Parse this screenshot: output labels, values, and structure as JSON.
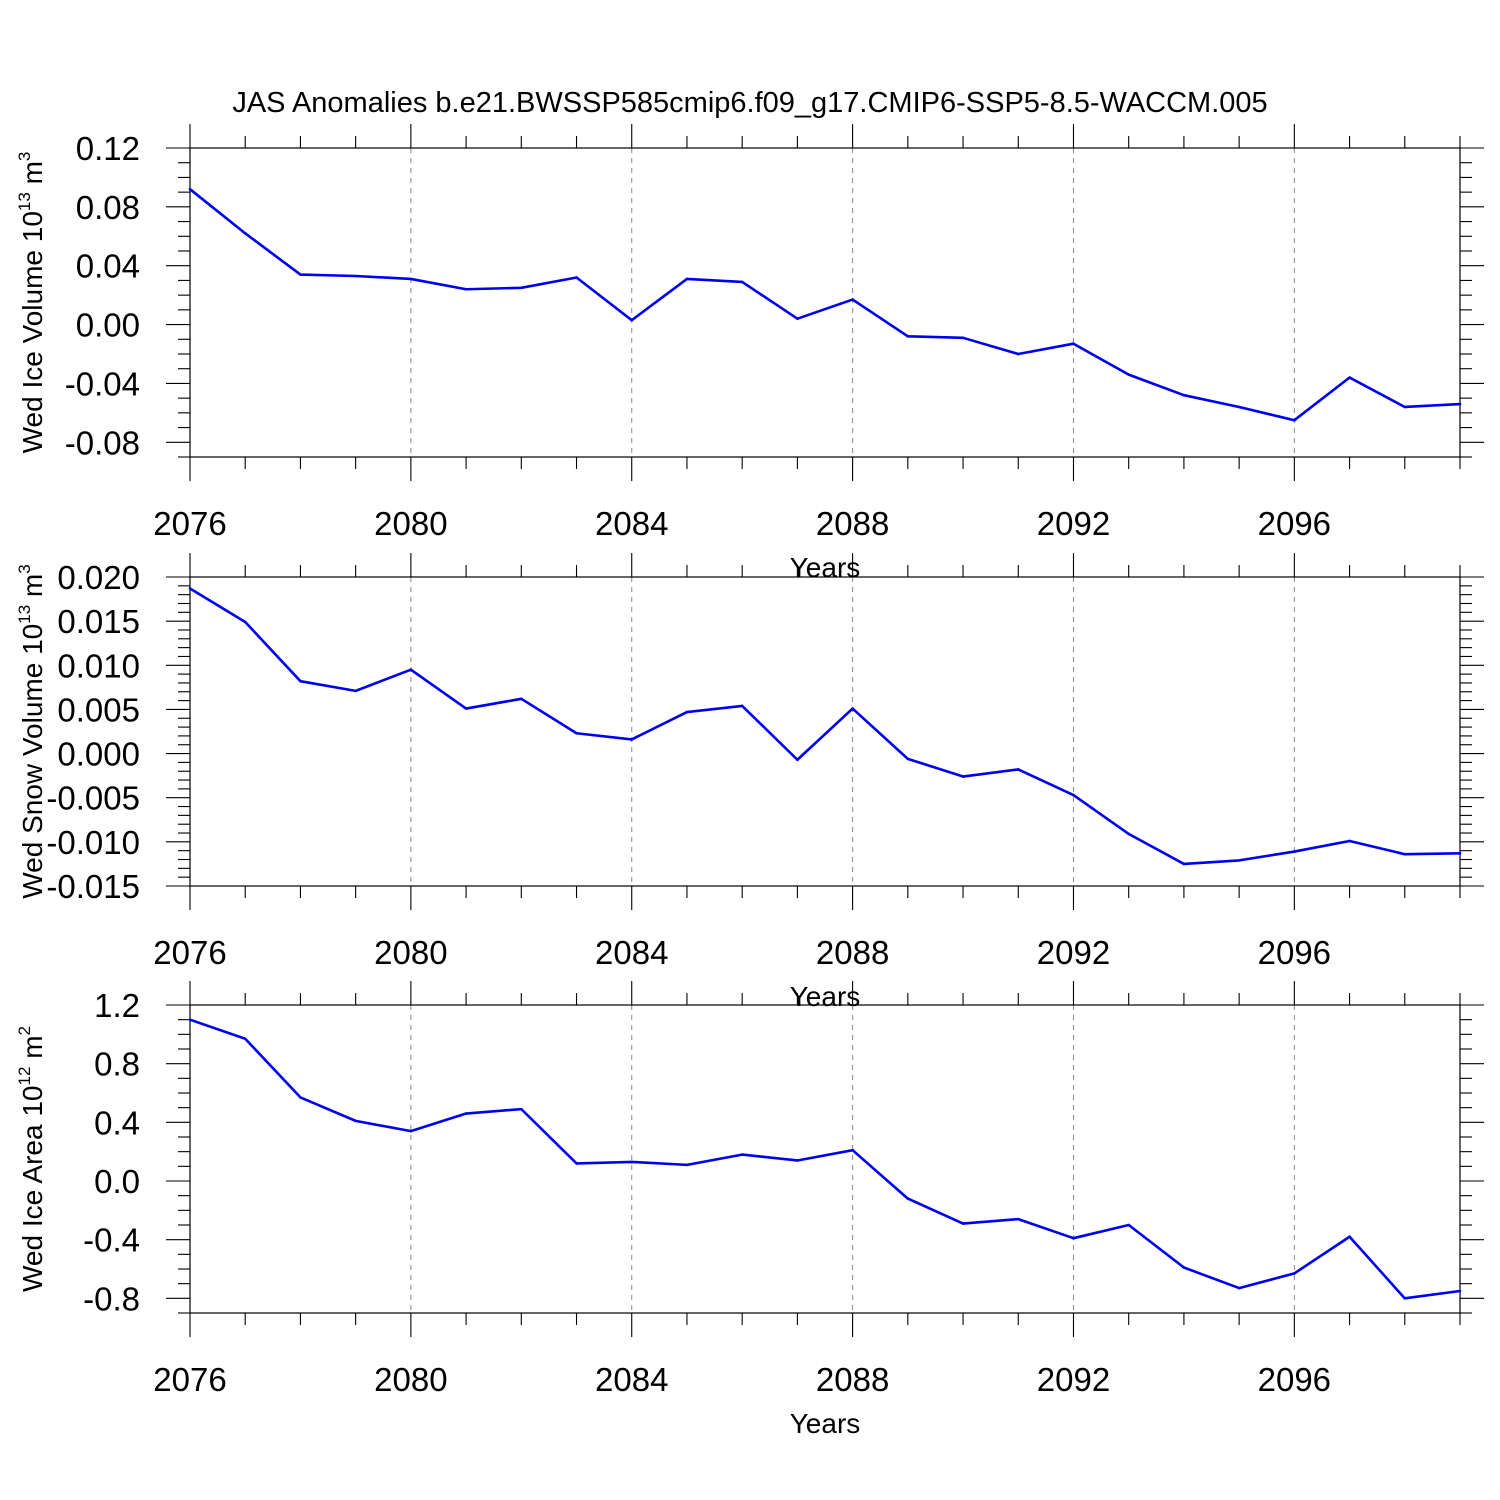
{
  "figure": {
    "title": "JAS Anomalies b.e21.BWSSP585cmip6.f09_g17.CMIP6-SSP5-8.5-WACCM.005"
  },
  "colors": {
    "line": "#0000ee",
    "axis": "#000000",
    "grid": "#888888"
  },
  "chart_data": [
    {
      "type": "line",
      "ylabel": "Wed Ice Volume 10",
      "ylabel_exponent": "13",
      "ylabel_unit": " m",
      "ylabel_unit_exponent": "3",
      "xlabel": "Years",
      "xlim": [
        2076,
        2099
      ],
      "ylim": [
        -0.09,
        0.12
      ],
      "xticks": [
        2076,
        2080,
        2084,
        2088,
        2092,
        2096
      ],
      "xtick_labels": [
        "2076",
        "2080",
        "2084",
        "2088",
        "2092",
        "2096"
      ],
      "yticks": [
        0.12,
        0.08,
        0.04,
        0.0,
        -0.04,
        -0.08
      ],
      "ytick_labels": [
        "0.12",
        "0.08",
        "0.04",
        "0.00",
        "-0.04",
        "-0.08"
      ],
      "x_minor_step": 1,
      "y_minor_step": 0.01,
      "grid": "vertical dashed at major x ticks",
      "x": [
        2076,
        2077,
        2078,
        2079,
        2080,
        2081,
        2082,
        2083,
        2084,
        2085,
        2086,
        2087,
        2088,
        2089,
        2090,
        2091,
        2092,
        2093,
        2094,
        2095,
        2096,
        2097,
        2098,
        2099
      ],
      "values": [
        0.092,
        0.062,
        0.034,
        0.033,
        0.031,
        0.024,
        0.025,
        0.032,
        0.003,
        0.031,
        0.029,
        0.004,
        0.017,
        -0.008,
        -0.009,
        -0.02,
        -0.013,
        -0.034,
        -0.048,
        -0.056,
        -0.065,
        -0.036,
        -0.056,
        -0.054
      ]
    },
    {
      "type": "line",
      "ylabel": "Wed Snow Volume 10",
      "ylabel_exponent": "13",
      "ylabel_unit": " m",
      "ylabel_unit_exponent": "3",
      "xlabel": "Years",
      "xlim": [
        2076,
        2099
      ],
      "ylim": [
        -0.015,
        0.02
      ],
      "xticks": [
        2076,
        2080,
        2084,
        2088,
        2092,
        2096
      ],
      "xtick_labels": [
        "2076",
        "2080",
        "2084",
        "2088",
        "2092",
        "2096"
      ],
      "yticks": [
        0.02,
        0.015,
        0.01,
        0.005,
        0.0,
        -0.005,
        -0.01,
        -0.015
      ],
      "ytick_labels": [
        "0.020",
        "0.015",
        "0.010",
        "0.005",
        "0.000",
        "-0.005",
        "-0.010",
        "-0.015"
      ],
      "x_minor_step": 1,
      "y_minor_step": 0.001,
      "grid": "vertical dashed at major x ticks",
      "x": [
        2076,
        2077,
        2078,
        2079,
        2080,
        2081,
        2082,
        2083,
        2084,
        2085,
        2086,
        2087,
        2088,
        2089,
        2090,
        2091,
        2092,
        2093,
        2094,
        2095,
        2096,
        2097,
        2098,
        2099
      ],
      "values": [
        0.0187,
        0.0149,
        0.0082,
        0.0071,
        0.0095,
        0.0051,
        0.0062,
        0.0023,
        0.0016,
        0.0047,
        0.0054,
        -0.0007,
        0.0051,
        -0.0006,
        -0.0026,
        -0.0018,
        -0.0047,
        -0.0091,
        -0.0125,
        -0.0121,
        -0.0111,
        -0.0099,
        -0.0114,
        -0.0113
      ]
    },
    {
      "type": "line",
      "ylabel": "Wed Ice Area 10",
      "ylabel_exponent": "12",
      "ylabel_unit": " m",
      "ylabel_unit_exponent": "2",
      "xlabel": "Years",
      "xlim": [
        2076,
        2099
      ],
      "ylim": [
        -0.9,
        1.2
      ],
      "xticks": [
        2076,
        2080,
        2084,
        2088,
        2092,
        2096
      ],
      "xtick_labels": [
        "2076",
        "2080",
        "2084",
        "2088",
        "2092",
        "2096"
      ],
      "yticks": [
        1.2,
        0.8,
        0.4,
        0.0,
        -0.4,
        -0.8
      ],
      "ytick_labels": [
        "1.2",
        "0.8",
        "0.4",
        "0.0",
        "-0.4",
        "-0.8"
      ],
      "x_minor_step": 1,
      "y_minor_step": 0.1,
      "grid": "vertical dashed at major x ticks",
      "x": [
        2076,
        2077,
        2078,
        2079,
        2080,
        2081,
        2082,
        2083,
        2084,
        2085,
        2086,
        2087,
        2088,
        2089,
        2090,
        2091,
        2092,
        2093,
        2094,
        2095,
        2096,
        2097,
        2098,
        2099
      ],
      "values": [
        1.1,
        0.97,
        0.57,
        0.41,
        0.34,
        0.46,
        0.49,
        0.12,
        0.13,
        0.11,
        0.18,
        0.14,
        0.21,
        -0.12,
        -0.29,
        -0.26,
        -0.39,
        -0.3,
        -0.59,
        -0.73,
        -0.63,
        -0.38,
        -0.8,
        -0.75
      ]
    }
  ]
}
